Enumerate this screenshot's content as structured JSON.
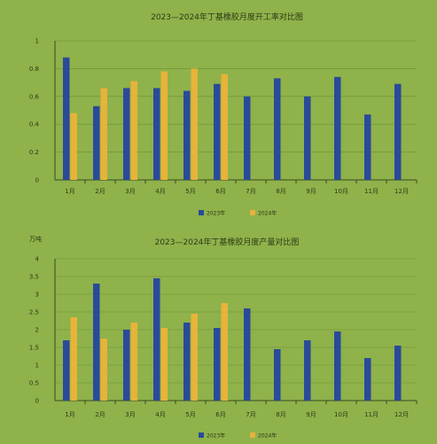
{
  "chart_data": [
    {
      "type": "bar",
      "title": "2023—2024年丁基橡胶月度开工率对比图",
      "unit": "",
      "categories": [
        "1月",
        "2月",
        "3月",
        "4月",
        "5月",
        "6月",
        "7月",
        "8月",
        "9月",
        "10月",
        "11月",
        "12月"
      ],
      "ylim": [
        0,
        1
      ],
      "yticks": [
        0,
        0.2,
        0.4,
        0.6,
        0.8,
        1
      ],
      "ytick_labels": [
        "0",
        "0.2",
        "0.4",
        "0.6",
        "0.8",
        "1"
      ],
      "series": [
        {
          "name": "2023年",
          "color": "#2a4a9a",
          "values": [
            0.88,
            0.53,
            0.66,
            0.66,
            0.64,
            0.69,
            0.6,
            0.73,
            0.6,
            0.74,
            0.47,
            0.69
          ]
        },
        {
          "name": "2024年",
          "color": "#e8b339",
          "values": [
            0.48,
            0.66,
            0.71,
            0.78,
            0.8,
            0.76,
            null,
            null,
            null,
            null,
            null,
            null
          ]
        }
      ],
      "legend_position": "bottom"
    },
    {
      "type": "bar",
      "title": "2023—2024年丁基橡胶月度产量对比图",
      "unit": "万吨",
      "categories": [
        "1月",
        "2月",
        "3月",
        "4月",
        "5月",
        "6月",
        "7月",
        "8月",
        "9月",
        "10月",
        "11月",
        "12月"
      ],
      "ylim": [
        0,
        4
      ],
      "yticks": [
        0,
        0.5,
        1,
        1.5,
        2,
        2.5,
        3,
        3.5,
        4
      ],
      "ytick_labels": [
        "0",
        "0.5",
        "1",
        "1.5",
        "2",
        "2.5",
        "3",
        "3.5",
        "4"
      ],
      "series": [
        {
          "name": "2023年",
          "color": "#2a4a9a",
          "values": [
            1.7,
            3.3,
            2.0,
            3.45,
            2.2,
            2.05,
            2.6,
            1.45,
            1.7,
            1.95,
            1.2,
            1.55
          ]
        },
        {
          "name": "2024年",
          "color": "#e8b339",
          "values": [
            2.35,
            1.75,
            2.2,
            2.05,
            2.45,
            2.75,
            null,
            null,
            null,
            null,
            null,
            null
          ]
        }
      ],
      "legend_position": "bottom"
    }
  ]
}
